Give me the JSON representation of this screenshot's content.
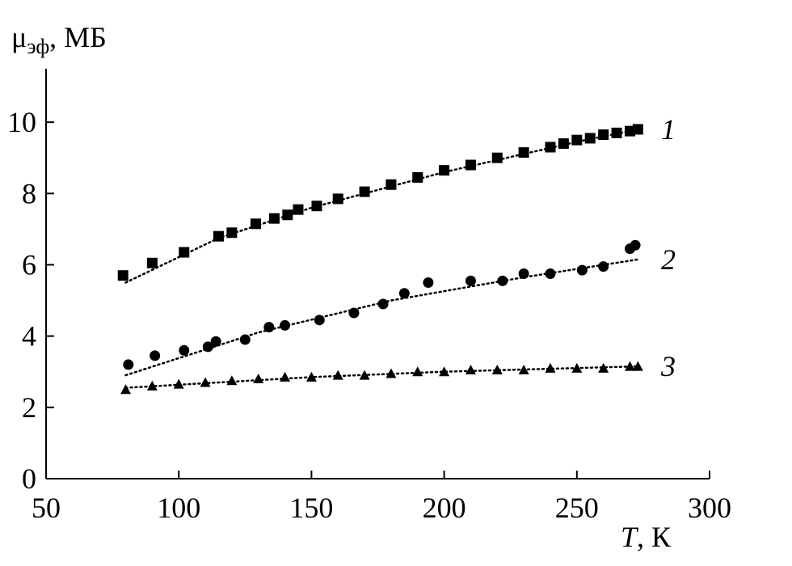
{
  "chart_data": {
    "type": "scatter",
    "ylabel_main": "μ",
    "ylabel_sub": "эф",
    "ylabel_unit": ", МБ",
    "xlabel_var": "T",
    "xlabel_unit": ", К",
    "xlim": [
      50,
      300
    ],
    "ylim": [
      0,
      11.5
    ],
    "xticks": [
      50,
      100,
      150,
      200,
      250,
      300
    ],
    "yticks": [
      0,
      2,
      4,
      6,
      8,
      10
    ],
    "grid": false,
    "series": [
      {
        "label": "1",
        "marker": "square",
        "x": [
          79,
          90,
          102,
          115,
          120,
          129,
          136,
          141,
          145,
          152,
          160,
          170,
          180,
          190,
          200,
          210,
          220,
          230,
          240,
          245,
          250,
          255,
          260,
          265,
          270,
          273
        ],
        "y": [
          5.7,
          6.05,
          6.35,
          6.8,
          6.9,
          7.15,
          7.3,
          7.4,
          7.55,
          7.65,
          7.85,
          8.05,
          8.25,
          8.45,
          8.65,
          8.8,
          9.0,
          9.15,
          9.3,
          9.4,
          9.5,
          9.55,
          9.65,
          9.7,
          9.75,
          9.8
        ],
        "fit": [
          [
            80,
            5.5
          ],
          [
            115,
            6.75
          ],
          [
            150,
            7.6
          ],
          [
            200,
            8.6
          ],
          [
            250,
            9.45
          ],
          [
            273,
            9.8
          ]
        ]
      },
      {
        "label": "2",
        "marker": "circle",
        "x": [
          81,
          91,
          102,
          111,
          114,
          125,
          134,
          140,
          153,
          166,
          177,
          185,
          194,
          210,
          222,
          230,
          240,
          252,
          260,
          270,
          272
        ],
        "y": [
          3.2,
          3.45,
          3.6,
          3.7,
          3.85,
          3.9,
          4.25,
          4.3,
          4.45,
          4.65,
          4.9,
          5.2,
          5.5,
          5.55,
          5.55,
          5.75,
          5.75,
          5.85,
          5.95,
          6.45,
          6.55
        ],
        "fit": [
          [
            80,
            2.9
          ],
          [
            130,
            4.1
          ],
          [
            180,
            5.0
          ],
          [
            230,
            5.65
          ],
          [
            273,
            6.15
          ]
        ]
      },
      {
        "label": "3",
        "marker": "triangle",
        "x": [
          80,
          90,
          100,
          110,
          120,
          130,
          140,
          150,
          160,
          170,
          180,
          190,
          200,
          210,
          220,
          230,
          240,
          250,
          260,
          270,
          273
        ],
        "y": [
          2.5,
          2.6,
          2.65,
          2.7,
          2.75,
          2.8,
          2.85,
          2.85,
          2.9,
          2.9,
          2.95,
          3.0,
          3.0,
          3.05,
          3.05,
          3.05,
          3.1,
          3.1,
          3.1,
          3.15,
          3.15
        ],
        "fit": [
          [
            80,
            2.55
          ],
          [
            150,
            2.85
          ],
          [
            200,
            3.0
          ],
          [
            273,
            3.15
          ]
        ]
      }
    ]
  }
}
